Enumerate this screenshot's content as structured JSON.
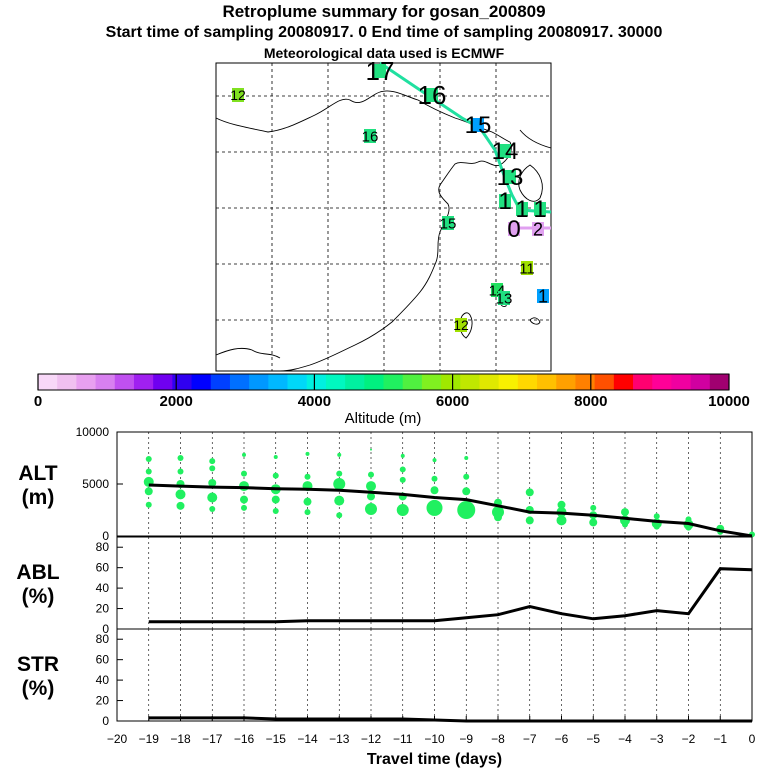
{
  "header": {
    "title": "Retroplume summary for gosan_200809",
    "subtitle": "Start time of sampling 20080917.    0     End time of sampling 20080917. 30000",
    "met_line": "Meteorological data used is ECMWF"
  },
  "colorbar": {
    "label": "Altitude  (m)",
    "tick_labels": [
      "0",
      "2000",
      "4000",
      "6000",
      "8000",
      "10000"
    ],
    "colors": [
      "#f8d8f8",
      "#f0c0f0",
      "#e8a0f0",
      "#d880f0",
      "#c050f0",
      "#a020f0",
      "#7000f0",
      "#3000f0",
      "#0000ff",
      "#0040ff",
      "#0070ff",
      "#0098ff",
      "#00b8ff",
      "#00d8f8",
      "#00f0e0",
      "#00f8c0",
      "#00f0a0",
      "#00f080",
      "#20f060",
      "#50f040",
      "#80f020",
      "#a0e800",
      "#c0e800",
      "#e0e800",
      "#f8f000",
      "#ffd800",
      "#ffc000",
      "#ffa000",
      "#ff8000",
      "#ff5000",
      "#ff0000",
      "#ff0070",
      "#ff0098",
      "#f000a0",
      "#d000a0",
      "#a00070"
    ]
  },
  "map": {
    "labels": [
      {
        "text": "12",
        "color": "#80e020"
      },
      {
        "text": "16",
        "color": "#20e080"
      },
      {
        "text": "17",
        "color": "#20e080"
      },
      {
        "text": "16",
        "color": "#20e080"
      },
      {
        "text": "15",
        "color": "#00a0ff"
      },
      {
        "text": "14",
        "color": "#20e080"
      },
      {
        "text": "13",
        "color": "#20e080"
      },
      {
        "text": "1",
        "color": "#20e080"
      },
      {
        "text": "1",
        "color": "#20e080"
      },
      {
        "text": "1",
        "color": "#20e080"
      },
      {
        "text": "15",
        "color": "#20e080"
      },
      {
        "text": "0",
        "color": "#e0a0f0"
      },
      {
        "text": "2",
        "color": "#e0a0f0"
      },
      {
        "text": "11",
        "color": "#a0e000"
      },
      {
        "text": "14",
        "color": "#20e060"
      },
      {
        "text": "13",
        "color": "#20e080"
      },
      {
        "text": "1",
        "color": "#00a0ff"
      },
      {
        "text": "12",
        "color": "#a0e000"
      }
    ]
  },
  "chart_data": [
    {
      "type": "line",
      "panel": "ALT",
      "ylabel": "ALT\n(m)",
      "ylabel_lines": [
        "ALT",
        "(m)"
      ],
      "ylim": [
        0,
        10000
      ],
      "yticks": [
        "0",
        "5000",
        "10000"
      ],
      "x": [
        -19,
        -18,
        -17,
        -16,
        -15,
        -14,
        -13,
        -12,
        -11,
        -10,
        -9,
        -8,
        -7,
        -6,
        -5,
        -4,
        -3,
        -2,
        -1,
        0
      ],
      "series": [
        {
          "name": "mean altitude",
          "values": [
            4900,
            4800,
            4700,
            4650,
            4550,
            4500,
            4400,
            4200,
            4000,
            3700,
            3500,
            2900,
            2300,
            2200,
            2000,
            1700,
            1400,
            1200,
            500,
            0
          ]
        }
      ],
      "scatter": [
        {
          "x": -19,
          "y": 7400,
          "s": 3
        },
        {
          "x": -19,
          "y": 6200,
          "s": 3
        },
        {
          "x": -19,
          "y": 5200,
          "s": 5
        },
        {
          "x": -19,
          "y": 4300,
          "s": 4
        },
        {
          "x": -19,
          "y": 3000,
          "s": 3
        },
        {
          "x": -18,
          "y": 7500,
          "s": 3
        },
        {
          "x": -18,
          "y": 6200,
          "s": 3
        },
        {
          "x": -18,
          "y": 5000,
          "s": 4
        },
        {
          "x": -18,
          "y": 4000,
          "s": 5
        },
        {
          "x": -18,
          "y": 2900,
          "s": 4
        },
        {
          "x": -17,
          "y": 7200,
          "s": 3
        },
        {
          "x": -17,
          "y": 6500,
          "s": 3
        },
        {
          "x": -17,
          "y": 5100,
          "s": 4
        },
        {
          "x": -17,
          "y": 3700,
          "s": 5
        },
        {
          "x": -17,
          "y": 2600,
          "s": 3
        },
        {
          "x": -16,
          "y": 7800,
          "s": 2
        },
        {
          "x": -16,
          "y": 6000,
          "s": 3
        },
        {
          "x": -16,
          "y": 4800,
          "s": 5
        },
        {
          "x": -16,
          "y": 3500,
          "s": 4
        },
        {
          "x": -16,
          "y": 2700,
          "s": 3
        },
        {
          "x": -15,
          "y": 7600,
          "s": 2
        },
        {
          "x": -15,
          "y": 5800,
          "s": 3
        },
        {
          "x": -15,
          "y": 4500,
          "s": 5
        },
        {
          "x": -15,
          "y": 3500,
          "s": 4
        },
        {
          "x": -15,
          "y": 2400,
          "s": 3
        },
        {
          "x": -14,
          "y": 7900,
          "s": 2
        },
        {
          "x": -14,
          "y": 5700,
          "s": 3
        },
        {
          "x": -14,
          "y": 4800,
          "s": 5
        },
        {
          "x": -14,
          "y": 3300,
          "s": 4
        },
        {
          "x": -14,
          "y": 2300,
          "s": 3
        },
        {
          "x": -13,
          "y": 7800,
          "s": 2
        },
        {
          "x": -13,
          "y": 6000,
          "s": 3
        },
        {
          "x": -13,
          "y": 5000,
          "s": 6
        },
        {
          "x": -13,
          "y": 3400,
          "s": 5
        },
        {
          "x": -13,
          "y": 2000,
          "s": 3
        },
        {
          "x": -12,
          "y": 8300,
          "s": 1
        },
        {
          "x": -12,
          "y": 5900,
          "s": 3
        },
        {
          "x": -12,
          "y": 4800,
          "s": 5
        },
        {
          "x": -12,
          "y": 3800,
          "s": 4
        },
        {
          "x": -12,
          "y": 2600,
          "s": 6
        },
        {
          "x": -11,
          "y": 7700,
          "s": 2
        },
        {
          "x": -11,
          "y": 6400,
          "s": 3
        },
        {
          "x": -11,
          "y": 5400,
          "s": 3
        },
        {
          "x": -11,
          "y": 3800,
          "s": 4
        },
        {
          "x": -11,
          "y": 2500,
          "s": 6
        },
        {
          "x": -10,
          "y": 7300,
          "s": 2
        },
        {
          "x": -10,
          "y": 5500,
          "s": 3
        },
        {
          "x": -10,
          "y": 4400,
          "s": 4
        },
        {
          "x": -10,
          "y": 2700,
          "s": 8
        },
        {
          "x": -9,
          "y": 7500,
          "s": 2
        },
        {
          "x": -9,
          "y": 5700,
          "s": 3
        },
        {
          "x": -9,
          "y": 4300,
          "s": 4
        },
        {
          "x": -9,
          "y": 2500,
          "s": 9
        },
        {
          "x": -8,
          "y": 3200,
          "s": 4
        },
        {
          "x": -8,
          "y": 2300,
          "s": 6
        },
        {
          "x": -8,
          "y": 1800,
          "s": 4
        },
        {
          "x": -7,
          "y": 4200,
          "s": 4
        },
        {
          "x": -7,
          "y": 2500,
          "s": 4
        },
        {
          "x": -7,
          "y": 1500,
          "s": 4
        },
        {
          "x": -6,
          "y": 3000,
          "s": 4
        },
        {
          "x": -6,
          "y": 2300,
          "s": 5
        },
        {
          "x": -6,
          "y": 1500,
          "s": 5
        },
        {
          "x": -5,
          "y": 2700,
          "s": 3
        },
        {
          "x": -5,
          "y": 2000,
          "s": 4
        },
        {
          "x": -5,
          "y": 1300,
          "s": 4
        },
        {
          "x": -4,
          "y": 2300,
          "s": 4
        },
        {
          "x": -4,
          "y": 1500,
          "s": 5
        },
        {
          "x": -4,
          "y": 1100,
          "s": 3
        },
        {
          "x": -3,
          "y": 1900,
          "s": 3
        },
        {
          "x": -3,
          "y": 1200,
          "s": 5
        },
        {
          "x": -3,
          "y": 900,
          "s": 3
        },
        {
          "x": -2,
          "y": 1600,
          "s": 3
        },
        {
          "x": -2,
          "y": 1100,
          "s": 5
        },
        {
          "x": -2,
          "y": 800,
          "s": 3
        },
        {
          "x": -1,
          "y": 700,
          "s": 4
        },
        {
          "x": -1,
          "y": 400,
          "s": 3
        },
        {
          "x": 0,
          "y": 150,
          "s": 3
        }
      ]
    },
    {
      "type": "line",
      "panel": "ABL",
      "ylabel": "ABL\n(%)",
      "ylabel_lines": [
        "ABL",
        "(%)"
      ],
      "ylim": [
        0,
        90
      ],
      "yticks": [
        "0",
        "20",
        "40",
        "60",
        "80"
      ],
      "x": [
        -19,
        -18,
        -17,
        -16,
        -15,
        -14,
        -13,
        -12,
        -11,
        -10,
        -9,
        -8,
        -7,
        -6,
        -5,
        -4,
        -3,
        -2,
        -1,
        0
      ],
      "series": [
        {
          "name": "ABL fraction",
          "values": [
            7,
            7,
            7,
            7,
            7,
            8,
            8,
            8,
            8,
            8,
            11,
            14,
            22,
            15,
            10,
            13,
            18,
            15,
            59,
            58
          ]
        }
      ]
    },
    {
      "type": "line",
      "panel": "STR",
      "ylabel": "STR\n(%)",
      "ylabel_lines": [
        "STR",
        "(%)"
      ],
      "ylim": [
        0,
        90
      ],
      "yticks": [
        "0",
        "20",
        "40",
        "60",
        "80"
      ],
      "xlabel": "Travel time (days)",
      "xticks": [
        "−20",
        "−19",
        "−18",
        "−17",
        "−16",
        "−15",
        "−14",
        "−13",
        "−12",
        "−11",
        "−10",
        "−9",
        "−8",
        "−7",
        "−6",
        "−5",
        "−4",
        "−3",
        "−2",
        "−1",
        "0"
      ],
      "x": [
        -19,
        -18,
        -17,
        -16,
        -15,
        -14,
        -13,
        -12,
        -11,
        -10,
        -9,
        -8,
        -7,
        -6,
        -5,
        -4,
        -3,
        -2,
        -1,
        0
      ],
      "series": [
        {
          "name": "stratosphere fraction",
          "values": [
            3,
            3,
            3,
            3,
            2,
            2,
            2,
            2,
            2,
            1,
            0,
            0,
            0,
            0,
            0,
            0,
            0,
            0,
            0,
            0
          ]
        }
      ]
    }
  ]
}
